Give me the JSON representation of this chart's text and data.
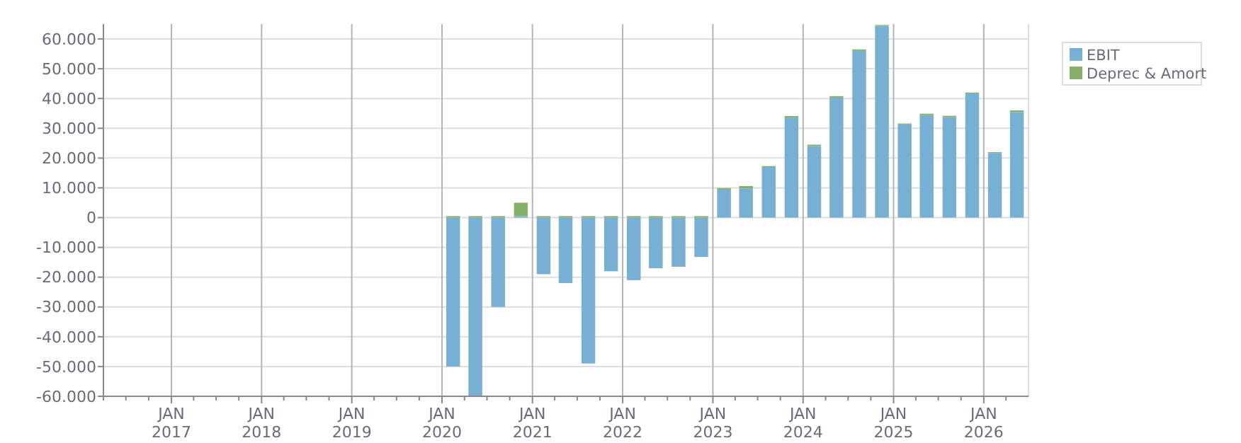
{
  "chart_data": {
    "type": "bar",
    "stacked": true,
    "x": [
      "2020-02-15",
      "2020-05-15",
      "2020-08-15",
      "2020-11-15",
      "2021-02-15",
      "2021-05-15",
      "2021-08-15",
      "2021-11-15",
      "2022-02-15",
      "2022-05-15",
      "2022-08-15",
      "2022-11-15",
      "2023-02-15",
      "2023-05-15",
      "2023-08-15",
      "2023-11-15",
      "2024-02-15",
      "2024-05-15",
      "2024-08-15",
      "2024-11-15",
      "2025-02-15",
      "2025-05-15",
      "2025-08-15",
      "2025-11-15",
      "2026-02-15",
      "2026-05-15"
    ],
    "series": [
      {
        "name": "EBIT",
        "color": "#77b0d3",
        "values": [
          -50000,
          -59800,
          -30000,
          500,
          -19000,
          -22000,
          -49000,
          -18000,
          -21000,
          -17000,
          -16500,
          -13200,
          9400,
          9800,
          17000,
          33600,
          24000,
          40300,
          56000,
          64400,
          31300,
          34400,
          33700,
          41700,
          21700,
          35400
        ]
      },
      {
        "name": "Deprec & Amort",
        "color": "#87b06a",
        "values": [
          500,
          500,
          500,
          4500,
          500,
          500,
          500,
          500,
          500,
          500,
          500,
          500,
          500,
          800,
          300,
          500,
          500,
          500,
          500,
          300,
          300,
          500,
          500,
          300,
          300,
          600
        ]
      }
    ],
    "xlim": [
      "2016-04-01",
      "2026-07-01"
    ],
    "xticks": [
      {
        "value": "2016-04-01",
        "label": null
      },
      {
        "value": "2016-07-01",
        "label": null
      },
      {
        "value": "2016-10-01",
        "label": null
      },
      {
        "value": "2017-01-01",
        "label": "JAN\n2017"
      },
      {
        "value": "2017-04-01",
        "label": null
      },
      {
        "value": "2017-07-01",
        "label": null
      },
      {
        "value": "2017-10-01",
        "label": null
      },
      {
        "value": "2018-01-01",
        "label": "JAN\n2018"
      },
      {
        "value": "2018-04-01",
        "label": null
      },
      {
        "value": "2018-07-01",
        "label": null
      },
      {
        "value": "2018-10-01",
        "label": null
      },
      {
        "value": "2019-01-01",
        "label": "JAN\n2019"
      },
      {
        "value": "2019-04-01",
        "label": null
      },
      {
        "value": "2019-07-01",
        "label": null
      },
      {
        "value": "2019-10-01",
        "label": null
      },
      {
        "value": "2020-01-01",
        "label": "JAN\n2020"
      },
      {
        "value": "2020-04-01",
        "label": null
      },
      {
        "value": "2020-07-01",
        "label": null
      },
      {
        "value": "2020-10-01",
        "label": null
      },
      {
        "value": "2021-01-01",
        "label": "JAN\n2021"
      },
      {
        "value": "2021-04-01",
        "label": null
      },
      {
        "value": "2021-07-01",
        "label": null
      },
      {
        "value": "2021-10-01",
        "label": null
      },
      {
        "value": "2022-01-01",
        "label": "JAN\n2022"
      },
      {
        "value": "2022-04-01",
        "label": null
      },
      {
        "value": "2022-07-01",
        "label": null
      },
      {
        "value": "2022-10-01",
        "label": null
      },
      {
        "value": "2023-01-01",
        "label": "JAN\n2023"
      },
      {
        "value": "2023-04-01",
        "label": null
      },
      {
        "value": "2023-07-01",
        "label": null
      },
      {
        "value": "2023-10-01",
        "label": null
      },
      {
        "value": "2024-01-01",
        "label": "JAN\n2024"
      },
      {
        "value": "2024-04-01",
        "label": null
      },
      {
        "value": "2024-07-01",
        "label": null
      },
      {
        "value": "2024-10-01",
        "label": null
      },
      {
        "value": "2025-01-01",
        "label": "JAN\n2025"
      },
      {
        "value": "2025-04-01",
        "label": null
      },
      {
        "value": "2025-07-01",
        "label": null
      },
      {
        "value": "2025-10-01",
        "label": null
      },
      {
        "value": "2026-01-01",
        "label": "JAN\n2026"
      },
      {
        "value": "2026-04-01",
        "label": null
      }
    ],
    "ylim": [
      -60000,
      65000
    ],
    "yticks": [
      {
        "value": -60000,
        "label": "-60.000"
      },
      {
        "value": -50000,
        "label": "-50.000"
      },
      {
        "value": -40000,
        "label": "-40.000"
      },
      {
        "value": -30000,
        "label": "-30.000"
      },
      {
        "value": -20000,
        "label": "-20.000"
      },
      {
        "value": -10000,
        "label": "-10.000"
      },
      0,
      {
        "value": 10000,
        "label": "10.000"
      },
      {
        "value": 20000,
        "label": "20.000"
      },
      {
        "value": 30000,
        "label": "30.000"
      },
      {
        "value": 40000,
        "label": "40.000"
      },
      {
        "value": 50000,
        "label": "50.000"
      },
      {
        "value": 60000,
        "label": "60.000"
      }
    ],
    "grid": true,
    "legend": "top right"
  }
}
